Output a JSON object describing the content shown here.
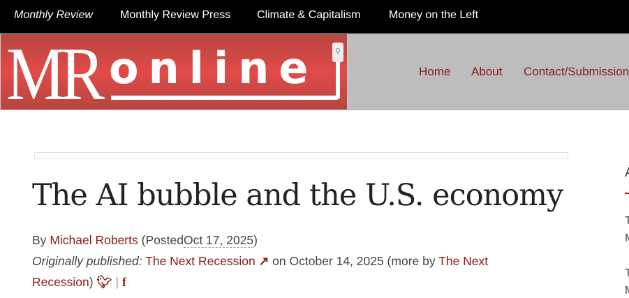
{
  "topnav": [
    "Monthly Review",
    "Monthly Review Press",
    "Climate & Capitalism",
    "Money on the Left"
  ],
  "logo": {
    "text": "MRonline"
  },
  "nav": [
    "Home",
    "About",
    "Contact/Submission"
  ],
  "article": {
    "title": "The AI bubble and the U.S. economy",
    "by": "By",
    "author": "Michael Roberts",
    "posted_prefix": "(Posted",
    "date": "Oct 17, 2025",
    "posted_suffix": ")",
    "orig_label": "Originally published:",
    "source": "The Next Recession",
    "on": "on October 14, 2025 (more by",
    "source_more": "The Next Recession",
    "close": ")",
    "sep": "|"
  },
  "sidebar": {
    "heading": "A",
    "items": [
      "T",
      "M",
      "T",
      "M"
    ]
  },
  "colors": {
    "accent": "#8b1a1a",
    "topbar": "#000000",
    "logo_red": "#e24a48"
  }
}
